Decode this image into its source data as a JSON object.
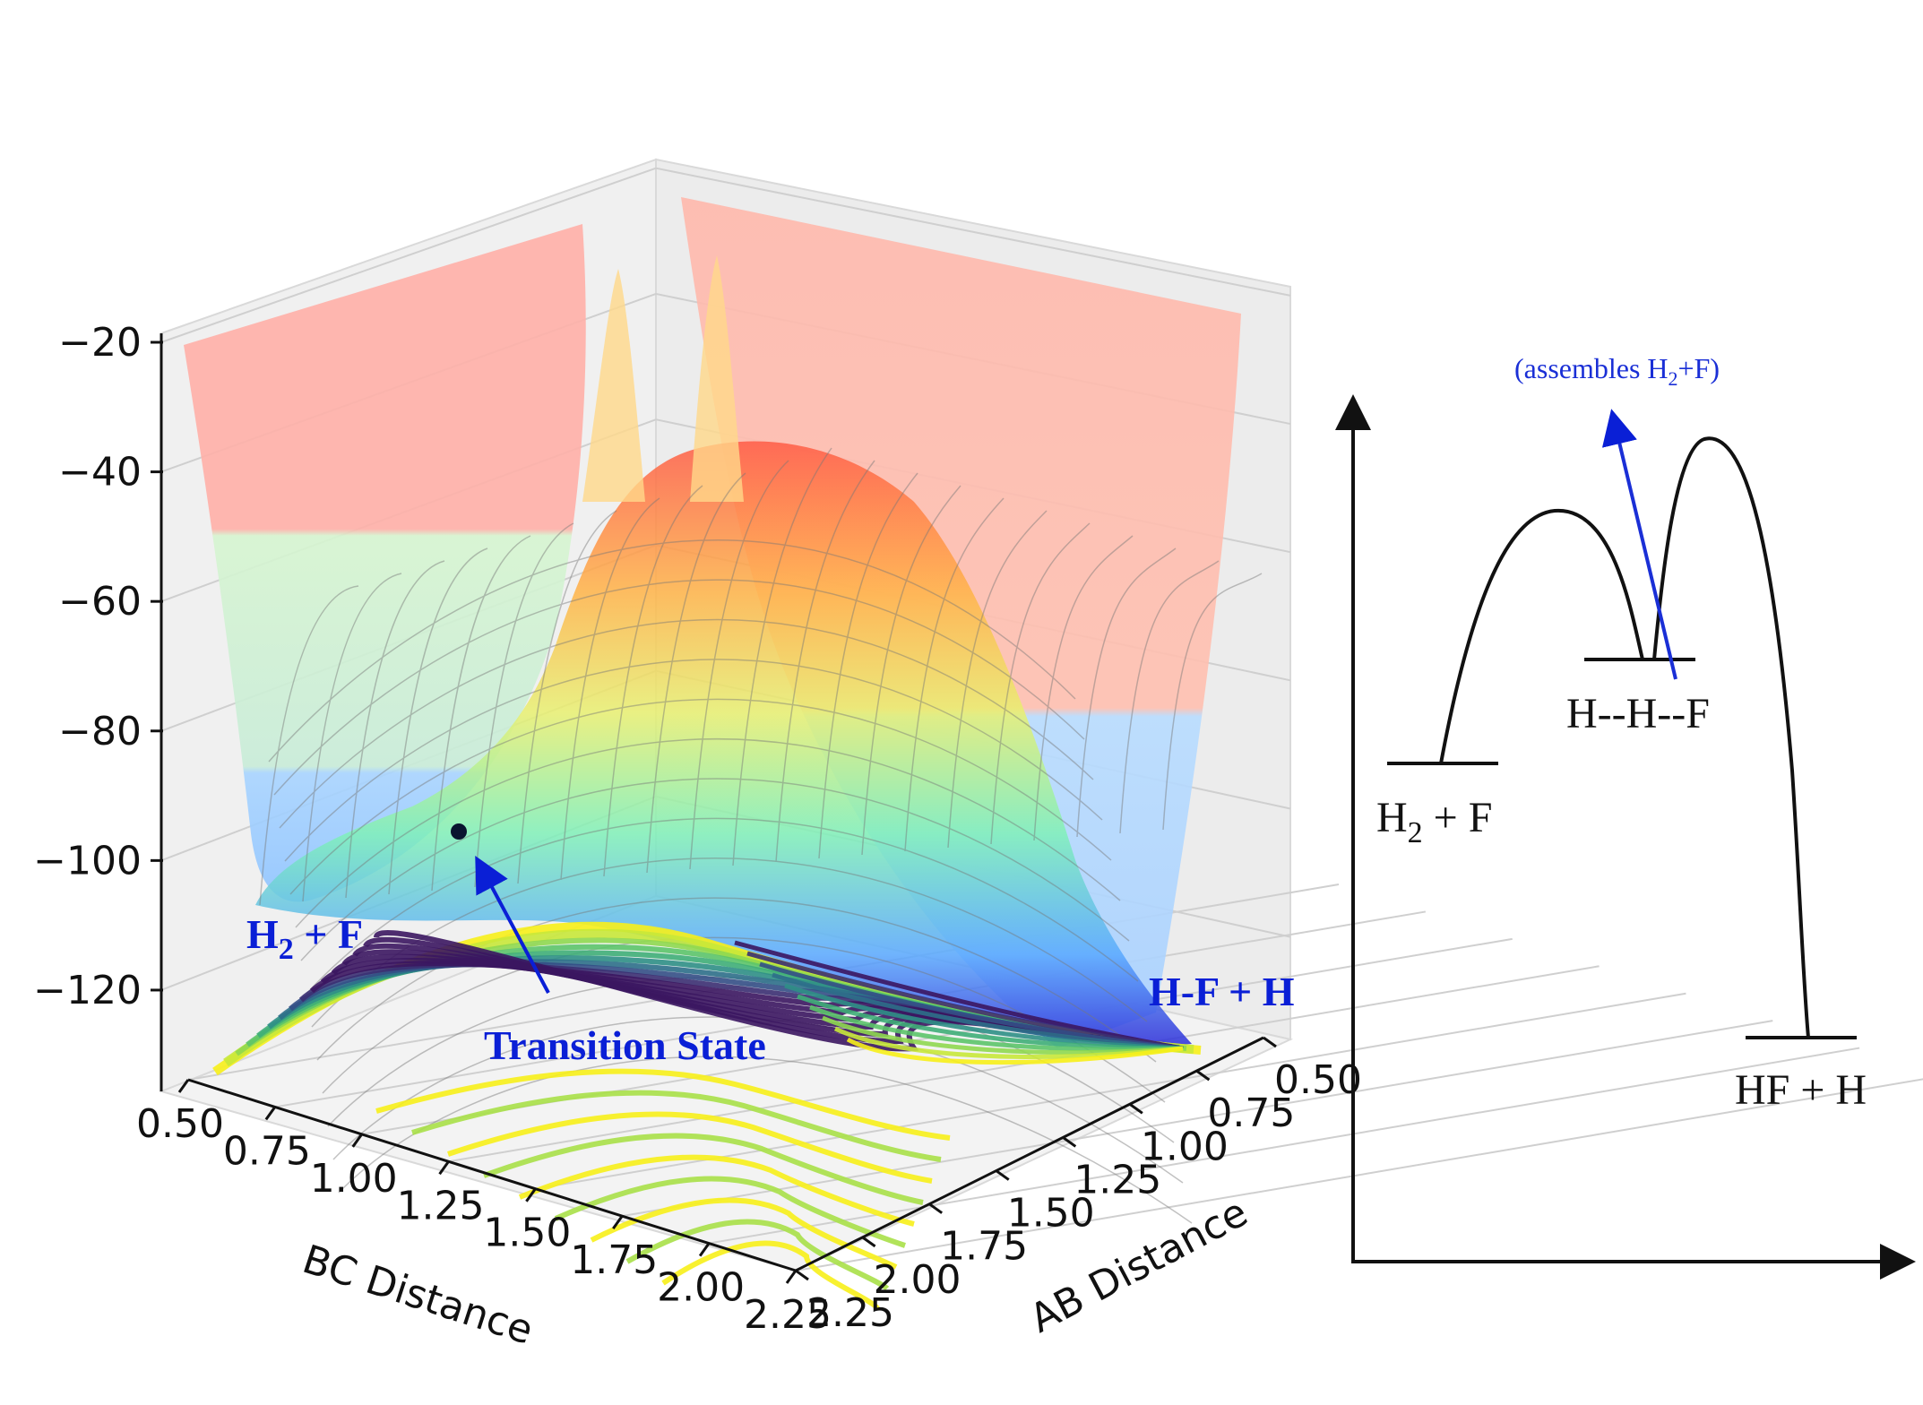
{
  "chart_data": [
    {
      "type": "surface3d",
      "title": "",
      "zlim": [
        -130,
        -20
      ],
      "z_ticks": [
        "−20",
        "−40",
        "−60",
        "−80",
        "−100",
        "−120"
      ],
      "x_ticks": [
        "0.50",
        "0.75",
        "1.00",
        "1.25",
        "1.50",
        "1.75",
        "2.00",
        "2.25"
      ],
      "y_ticks": [
        "0.50",
        "0.75",
        "1.00",
        "1.25",
        "1.50",
        "1.75",
        "2.00",
        "2.25"
      ],
      "xlabel": "BC Distance",
      "ylabel": "AB Distance",
      "xlim": [
        0.5,
        2.25
      ],
      "ylim": [
        0.5,
        2.25
      ],
      "colormap": "jet (surface) / viridis (contours)",
      "annotations": {
        "reactants": {
          "text_main": "H",
          "text_sub": "2",
          "text_rest": " + F"
        },
        "products": "H-F + H",
        "transition_state": "Transition State"
      }
    },
    {
      "type": "line",
      "title": "",
      "xlabel": "",
      "ylabel": "",
      "states": [
        {
          "name": "reactants",
          "label_main": "H",
          "label_sub": "2",
          "label_rest": " + F"
        },
        {
          "name": "intermediate",
          "label": "H--H--F"
        },
        {
          "name": "products",
          "label": "HF + H"
        }
      ],
      "note": {
        "main": "(assembles H",
        "sub": "2",
        "rest": "+F)"
      }
    }
  ],
  "colors": {
    "annotation_blue": "#0a1fd6",
    "axis": "#111111",
    "surface_red": "#ff5b45",
    "surface_green": "#8ef0b0",
    "surface_blue": "#5a8cff",
    "contour_yellow": "#f7f01a",
    "contour_green": "#3fb878",
    "contour_purple": "#3b1660"
  }
}
